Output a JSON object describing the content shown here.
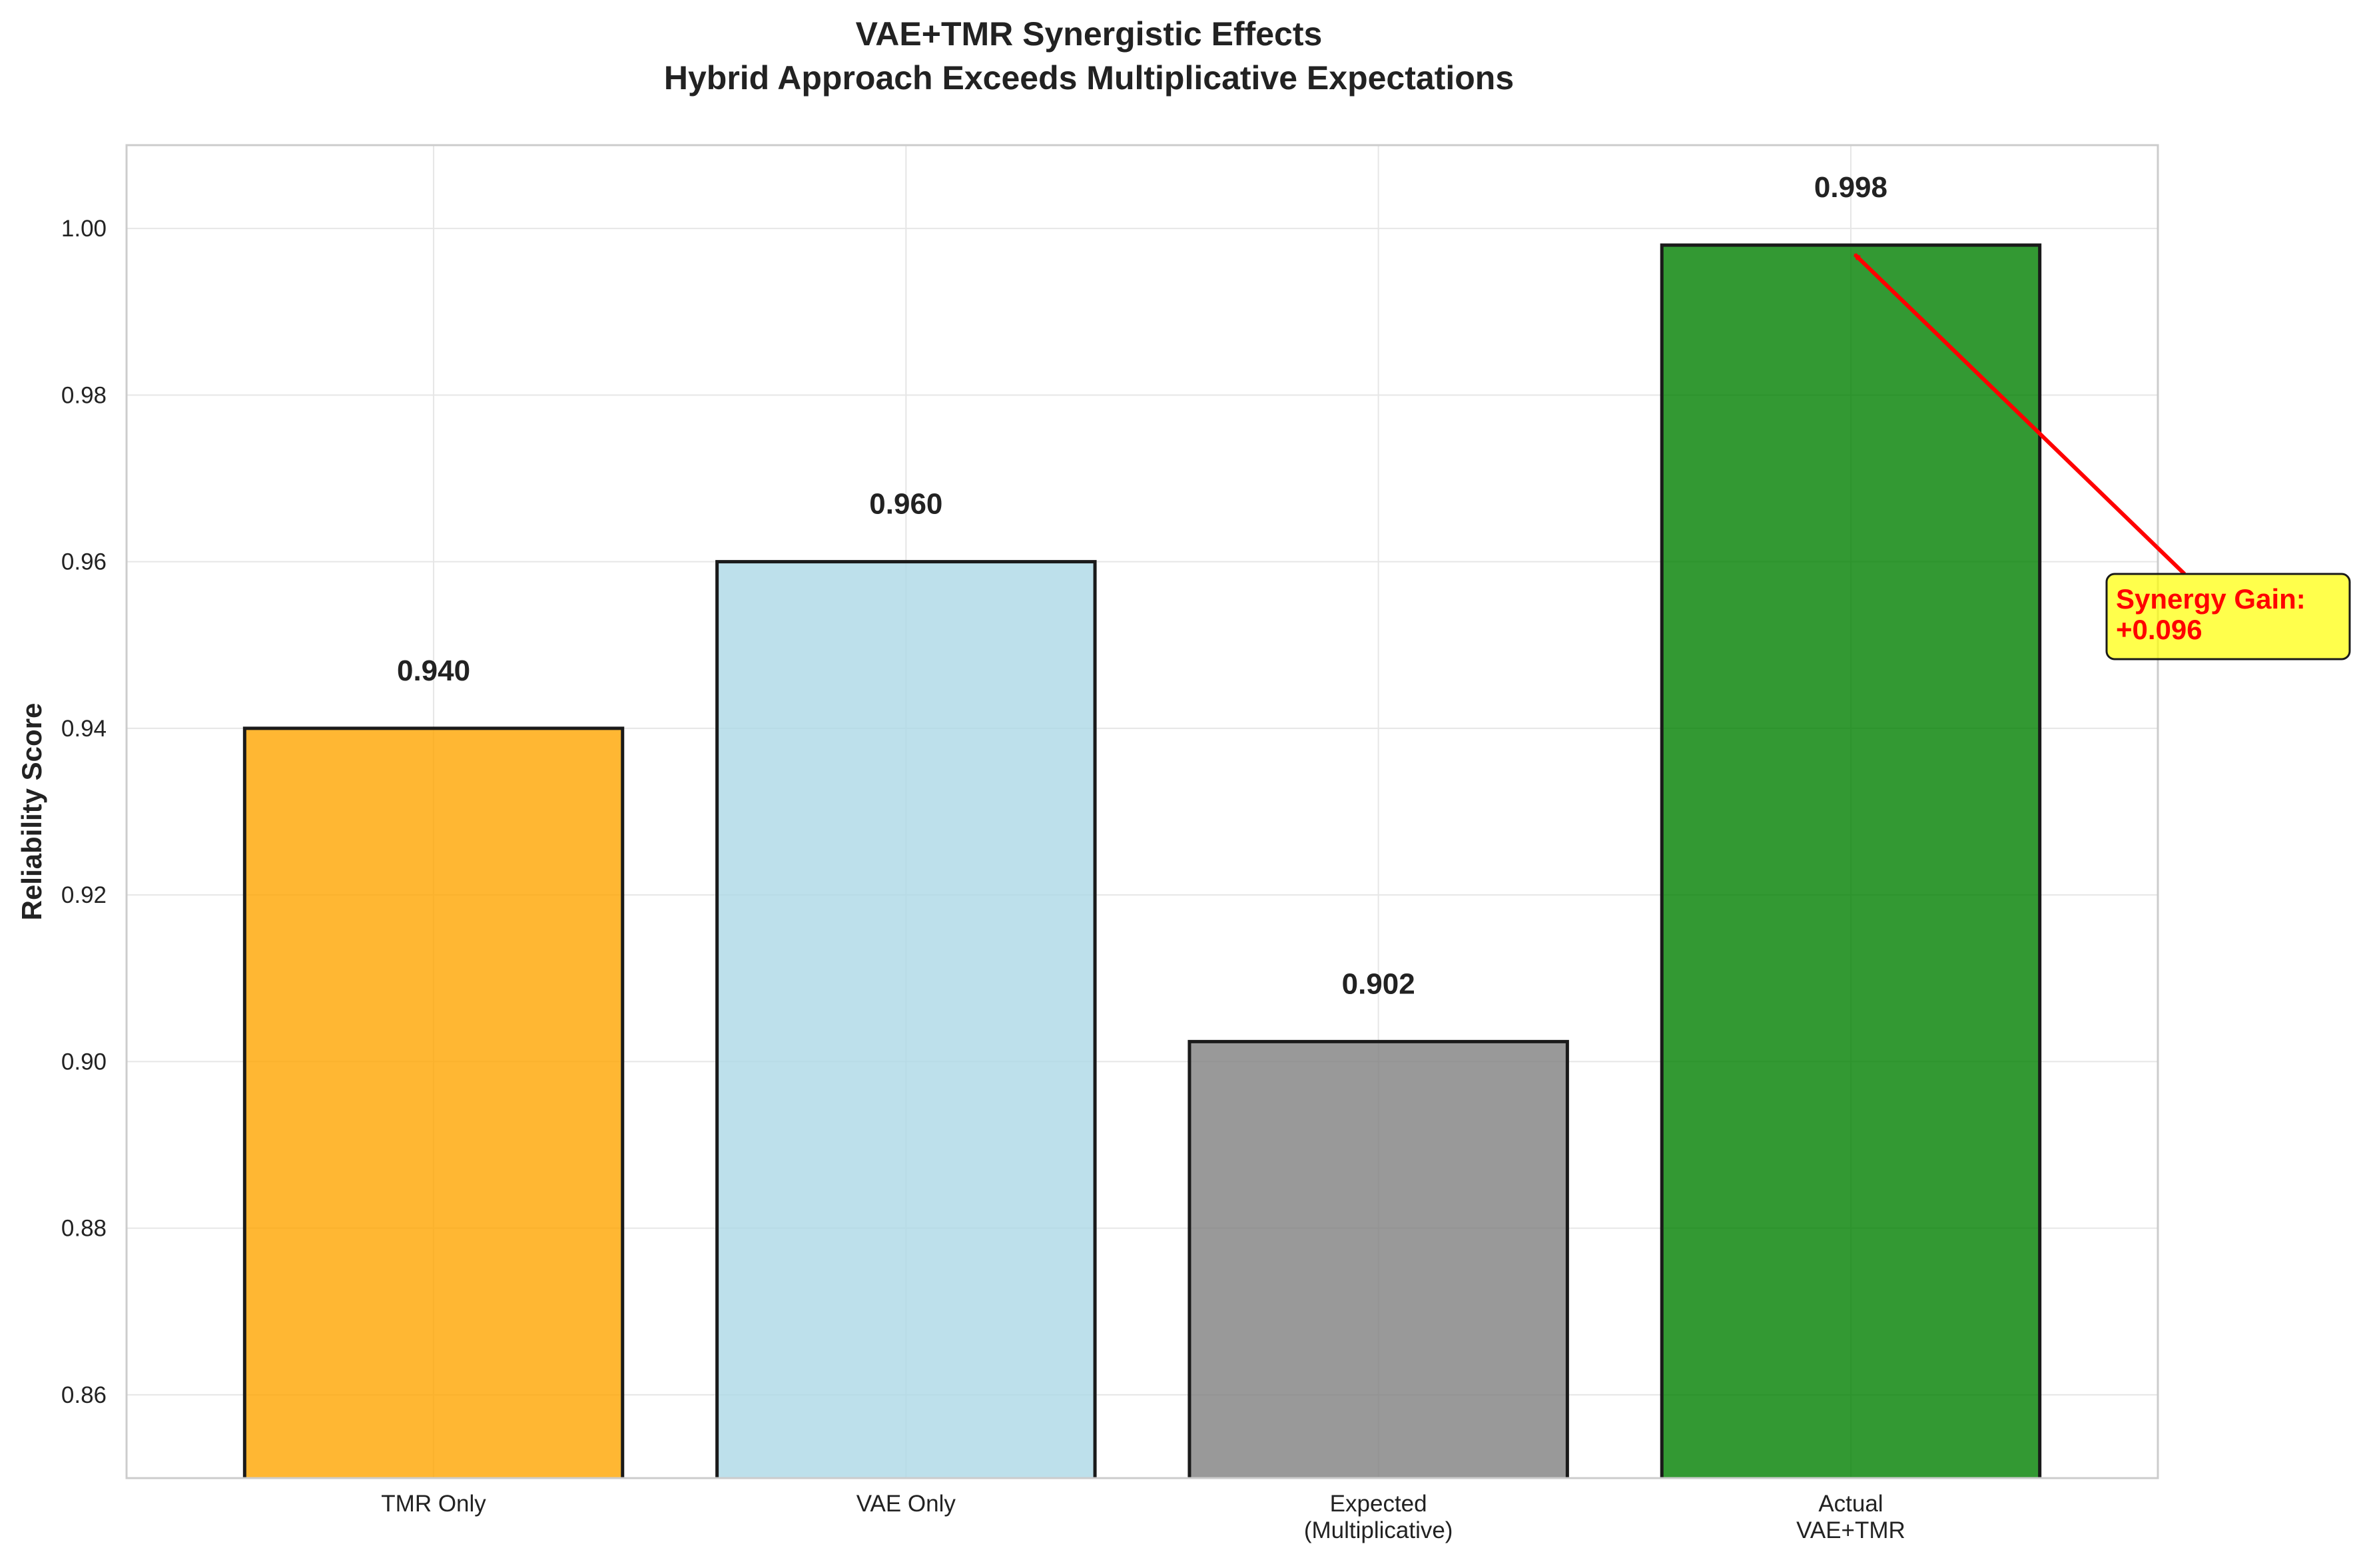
{
  "chart_data": {
    "type": "bar",
    "title": [
      "VAE+TMR Synergistic Effects",
      "Hybrid Approach Exceeds Multiplicative Expectations"
    ],
    "xlabel": "",
    "ylabel": "Reliability Score",
    "categories": [
      [
        "TMR Only"
      ],
      [
        "VAE Only"
      ],
      [
        "Expected",
        "(Multiplicative)"
      ],
      [
        "Actual",
        "VAE+TMR"
      ]
    ],
    "values": [
      0.94,
      0.96,
      0.9024,
      0.998
    ],
    "value_labels": [
      "0.940",
      "0.960",
      "0.902",
      "0.998"
    ],
    "colors": [
      "#FFA500",
      "#ADD8E6",
      "#808080",
      "#008000"
    ],
    "bar_opacity": 0.8,
    "ylim": [
      0.85,
      1.01
    ],
    "yticks": [
      0.86,
      0.88,
      0.9,
      0.92,
      0.94,
      0.96,
      0.98,
      1.0
    ],
    "ytick_labels": [
      "0.86",
      "0.88",
      "0.90",
      "0.92",
      "0.94",
      "0.96",
      "0.98",
      "1.00"
    ],
    "grid": true,
    "annotation": {
      "lines": [
        "Synergy Gain:",
        "+0.096"
      ],
      "target_bar": 3,
      "text_color": "#FF0000",
      "box_color": "#FFFF00",
      "arrow_color": "#FF0000"
    }
  }
}
